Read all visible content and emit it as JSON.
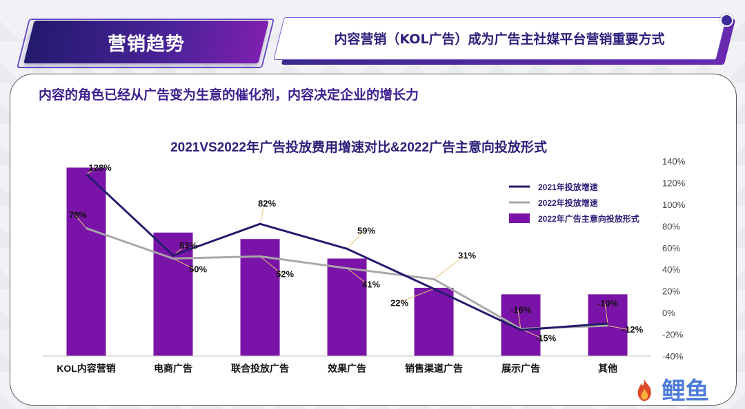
{
  "header": {
    "section_title": "营销趋势",
    "headline": "内容营销（KOL广告）成为广告主社媒平台营销重要方式"
  },
  "subtitle": "内容的角色已经从广告变为生意的催化剂，内容决定企业的增长力",
  "colors": {
    "bar": "#7a14a8",
    "line2021": "#261a6e",
    "line2022": "#a8a8a8",
    "title": "#2b2078",
    "leader": "#e8c27a"
  },
  "chart_data": {
    "type": "bar",
    "title": "2021VS2022年广告投放费用增速对比&2022广告主意向投放形式",
    "categories": [
      "KOL内容营销",
      "电商广告",
      "联合投放广告",
      "效果广告",
      "销售渠道广告",
      "展示广告",
      "其他"
    ],
    "ylim": [
      -40,
      140
    ],
    "yticks": [
      "140%",
      "120%",
      "100%",
      "80%",
      "60%",
      "40%",
      "20%",
      "0%",
      "-20%",
      "-40%"
    ],
    "ytick_values": [
      140,
      120,
      100,
      80,
      60,
      40,
      20,
      0,
      -20,
      -40
    ],
    "y_axis_side": "right",
    "series": [
      {
        "name": "2022年广告主意向投放形式",
        "type": "bar",
        "values": [
          134,
          74,
          68,
          50,
          23,
          17,
          17
        ]
      },
      {
        "name": "2021年投放增速",
        "type": "line",
        "values": [
          128,
          53,
          82,
          59,
          22,
          -16,
          -10
        ],
        "labels": [
          "128%",
          "53%",
          "82%",
          "59%",
          "22%",
          "-16%",
          "-10%"
        ]
      },
      {
        "name": "2022年投放增速",
        "type": "line",
        "values": [
          78,
          50,
          52,
          41,
          31,
          -15,
          -12
        ],
        "labels": [
          "78%",
          "50%",
          "52%",
          "41%",
          "31%",
          "-15%",
          "-12%"
        ]
      }
    ],
    "legend": {
      "placement": "top-right",
      "items": [
        "2021年投放增速",
        "2022年投放增速",
        "2022年广告主意向投放形式"
      ]
    },
    "grid": false
  },
  "watermark": {
    "brand": "鲤鱼"
  }
}
